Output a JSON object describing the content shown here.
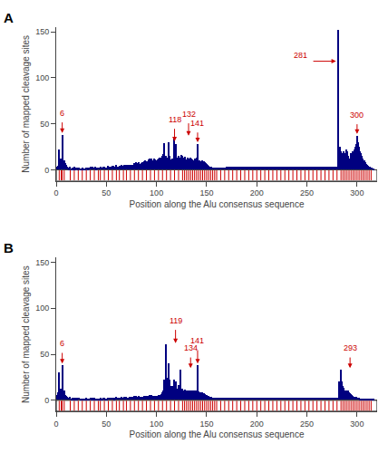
{
  "chart_data": [
    {
      "type": "bar",
      "title": "A",
      "xlabel": "Position along the Alu consensus sequence",
      "ylabel": "Number of mapped cleavage sites",
      "color": "#000080",
      "xlim": [
        0,
        320
      ],
      "xticks": [
        0,
        50,
        100,
        150,
        200,
        250,
        300
      ],
      "ylim": [
        -12,
        155
      ],
      "yticks": [
        0,
        50,
        100,
        150
      ],
      "grid": false,
      "values": [
        3,
        4,
        22,
        8,
        12,
        38,
        5,
        10,
        7,
        5,
        3,
        2,
        1,
        3,
        1,
        2,
        1,
        3,
        1,
        2,
        2,
        1,
        2,
        1,
        1,
        2,
        1,
        1,
        1,
        2,
        2,
        1,
        2,
        3,
        2,
        3,
        2,
        2,
        3,
        1,
        2,
        2,
        2,
        3,
        2,
        2,
        3,
        3,
        2,
        2,
        2,
        4,
        3,
        3,
        3,
        4,
        4,
        2,
        3,
        5,
        3,
        3,
        4,
        4,
        5,
        3,
        4,
        5,
        4,
        5,
        5,
        5,
        5,
        5,
        5,
        5,
        5,
        7,
        6,
        8,
        7,
        8,
        6,
        6,
        7,
        8,
        7,
        9,
        10,
        9,
        9,
        11,
        12,
        11,
        12,
        10,
        10,
        12,
        11,
        10,
        11,
        12,
        13,
        11,
        13,
        15,
        17,
        29,
        15,
        13,
        10,
        30,
        15,
        10,
        11,
        12,
        12,
        35,
        28,
        13,
        12,
        15,
        12,
        13,
        16,
        15,
        13,
        14,
        11,
        10,
        13,
        12,
        11,
        13,
        12,
        11,
        10,
        12,
        11,
        13,
        28,
        9,
        10,
        8,
        9,
        10,
        9,
        8,
        7,
        6,
        5,
        4,
        3,
        3,
        3,
        2,
        2,
        2,
        2,
        2,
        2,
        2,
        2,
        2,
        2,
        2,
        2,
        2,
        2,
        3,
        3,
        3,
        3,
        3,
        3,
        3,
        3,
        3,
        3,
        3,
        3,
        3,
        3,
        3,
        3,
        3,
        3,
        3,
        3,
        3,
        3,
        3,
        3,
        3,
        3,
        3,
        3,
        3,
        3,
        3,
        3,
        3,
        3,
        3,
        3,
        3,
        3,
        3,
        3,
        3,
        3,
        3,
        3,
        3,
        3,
        3,
        3,
        3,
        3,
        3,
        3,
        3,
        3,
        3,
        3,
        3,
        3,
        3,
        3,
        3,
        3,
        3,
        3,
        3,
        3,
        3,
        3,
        3,
        3,
        3,
        3,
        3,
        3,
        3,
        3,
        3,
        3,
        3,
        3,
        3,
        3,
        3,
        3,
        3,
        3,
        3,
        3,
        3,
        3,
        3,
        3,
        3,
        3,
        3,
        3,
        3,
        3,
        3,
        3,
        3,
        3,
        3,
        3,
        3,
        3,
        3,
        3,
        3,
        3,
        3,
        152,
        20,
        25,
        20,
        15,
        18,
        20,
        18,
        22,
        20,
        15,
        12,
        10,
        18,
        15,
        20,
        22,
        25,
        28,
        37,
        30,
        25,
        20,
        18,
        15,
        12,
        10,
        8,
        6,
        5,
        4,
        3,
        3,
        2,
        2,
        1
      ],
      "strip": {
        "color": "#cc0000",
        "x": [
          3,
          5,
          6,
          8,
          14,
          18,
          22,
          26,
          30,
          34,
          38,
          42,
          44,
          48,
          52,
          56,
          60,
          63,
          67,
          70,
          74,
          78,
          82,
          86,
          90,
          94,
          98,
          102,
          106,
          110,
          114,
          118,
          122,
          126,
          128,
          130,
          132,
          134,
          136,
          138,
          140,
          142,
          144,
          146,
          148,
          150,
          152,
          154,
          156,
          158,
          160,
          164,
          168,
          172,
          176,
          180,
          184,
          188,
          192,
          196,
          200,
          204,
          208,
          212,
          216,
          220,
          224,
          228,
          232,
          236,
          240,
          244,
          248,
          252,
          256,
          260,
          264,
          268,
          272,
          276,
          280,
          284,
          286,
          288,
          290,
          292,
          294,
          296,
          298,
          300,
          302,
          304,
          306,
          308,
          310,
          312,
          314
        ]
      },
      "annotations": [
        {
          "text": "6",
          "color": "#cc0000",
          "x": 6,
          "y": 55,
          "arrow_start": [
            6,
            53
          ],
          "arrow_end": [
            6,
            40
          ]
        },
        {
          "text": "118",
          "color": "#cc0000",
          "x": 118,
          "y": 48,
          "arrow_start": [
            118,
            46
          ],
          "arrow_end": [
            118,
            31
          ]
        },
        {
          "text": "132",
          "color": "#cc0000",
          "x": 132,
          "y": 54,
          "arrow_start": [
            132,
            52
          ],
          "arrow_end": [
            132,
            37
          ]
        },
        {
          "text": "141",
          "color": "#cc0000",
          "x": 141,
          "y": 44,
          "arrow_start": [
            141,
            42
          ],
          "arrow_end": [
            141,
            30
          ]
        },
        {
          "text": "281",
          "color": "#cc0000",
          "x": 244,
          "y": 118,
          "arrow_start": [
            255,
            118
          ],
          "arrow_end": [
            279,
            118
          ]
        },
        {
          "text": "300",
          "color": "#cc0000",
          "x": 300,
          "y": 53,
          "arrow_start": [
            300,
            51
          ],
          "arrow_end": [
            300,
            39
          ]
        }
      ]
    },
    {
      "type": "bar",
      "title": "B",
      "xlabel": "Position along the Alu consensus sequence",
      "ylabel": "Number of mapped cleavage sites",
      "color": "#000080",
      "xlim": [
        0,
        320
      ],
      "xticks": [
        0,
        50,
        100,
        150,
        200,
        250,
        300
      ],
      "ylim": [
        -12,
        155
      ],
      "yticks": [
        0,
        50,
        100,
        150
      ],
      "grid": false,
      "values": [
        5,
        8,
        30,
        10,
        12,
        38,
        8,
        10,
        5,
        4,
        3,
        2,
        2,
        3,
        1,
        2,
        1,
        2,
        1,
        2,
        1,
        2,
        2,
        1,
        1,
        1,
        1,
        1,
        1,
        2,
        1,
        1,
        1,
        2,
        1,
        2,
        1,
        2,
        1,
        1,
        1,
        1,
        1,
        2,
        1,
        1,
        2,
        2,
        1,
        1,
        1,
        2,
        2,
        2,
        2,
        2,
        2,
        1,
        2,
        3,
        2,
        2,
        2,
        2,
        3,
        2,
        2,
        3,
        2,
        3,
        2,
        2,
        3,
        3,
        3,
        3,
        3,
        4,
        3,
        4,
        3,
        4,
        3,
        3,
        3,
        3,
        3,
        4,
        4,
        4,
        4,
        4,
        5,
        4,
        5,
        4,
        4,
        4,
        4,
        4,
        4,
        5,
        5,
        5,
        6,
        8,
        10,
        22,
        60,
        24,
        15,
        40,
        22,
        15,
        14,
        15,
        14,
        22,
        20,
        12,
        10,
        16,
        10,
        33,
        10,
        12,
        10,
        11,
        10,
        10,
        10,
        10,
        10,
        10,
        10,
        10,
        10,
        10,
        10,
        10,
        38,
        9,
        8,
        8,
        7,
        8,
        7,
        6,
        5,
        5,
        4,
        4,
        3,
        3,
        3,
        2,
        2,
        2,
        2,
        2,
        2,
        2,
        2,
        2,
        2,
        2,
        2,
        2,
        2,
        2,
        2,
        2,
        2,
        2,
        2,
        2,
        2,
        2,
        2,
        2,
        2,
        2,
        2,
        2,
        2,
        2,
        2,
        2,
        2,
        2,
        2,
        2,
        2,
        2,
        2,
        2,
        2,
        2,
        2,
        2,
        2,
        2,
        2,
        2,
        2,
        2,
        2,
        2,
        2,
        2,
        2,
        2,
        2,
        2,
        2,
        2,
        2,
        2,
        2,
        2,
        2,
        2,
        2,
        2,
        2,
        2,
        2,
        2,
        2,
        2,
        2,
        2,
        2,
        2,
        2,
        2,
        2,
        2,
        2,
        2,
        2,
        2,
        2,
        2,
        2,
        2,
        2,
        2,
        2,
        2,
        2,
        2,
        2,
        2,
        2,
        2,
        2,
        2,
        2,
        2,
        2,
        2,
        2,
        2,
        2,
        2,
        2,
        2,
        2,
        2,
        2,
        2,
        2,
        2,
        2,
        2,
        2,
        2,
        2,
        2,
        2,
        20,
        18,
        33,
        20,
        15,
        13,
        10,
        10,
        10,
        10,
        8,
        7,
        6,
        5,
        4,
        3,
        3,
        3,
        2,
        2,
        2,
        1,
        1,
        1,
        1,
        1,
        1,
        1,
        1,
        1,
        1,
        1,
        1,
        1,
        1
      ],
      "strip": {
        "color": "#cc0000",
        "x": [
          3,
          5,
          6,
          8,
          14,
          18,
          22,
          26,
          30,
          34,
          38,
          42,
          44,
          48,
          52,
          56,
          60,
          63,
          67,
          70,
          74,
          78,
          82,
          86,
          90,
          94,
          98,
          102,
          106,
          110,
          114,
          118,
          122,
          126,
          128,
          130,
          132,
          134,
          136,
          138,
          140,
          142,
          144,
          146,
          148,
          150,
          152,
          154,
          156,
          158,
          160,
          164,
          168,
          172,
          176,
          180,
          184,
          188,
          192,
          196,
          200,
          204,
          208,
          212,
          216,
          220,
          224,
          228,
          232,
          236,
          240,
          244,
          248,
          252,
          256,
          260,
          264,
          268,
          272,
          276,
          280,
          284,
          286,
          288,
          290,
          292,
          294,
          296,
          298,
          300,
          302,
          304,
          306,
          308,
          310,
          312,
          314
        ]
      },
      "annotations": [
        {
          "text": "6",
          "color": "#cc0000",
          "x": 6,
          "y": 55,
          "arrow_start": [
            6,
            53
          ],
          "arrow_end": [
            6,
            40
          ]
        },
        {
          "text": "119",
          "color": "#cc0000",
          "x": 119,
          "y": 80,
          "arrow_start": [
            119,
            78
          ],
          "arrow_end": [
            119,
            62
          ]
        },
        {
          "text": "134",
          "color": "#cc0000",
          "x": 134,
          "y": 50,
          "arrow_start": [
            134,
            48
          ],
          "arrow_end": [
            134,
            35
          ]
        },
        {
          "text": "141",
          "color": "#cc0000",
          "x": 141,
          "y": 58,
          "arrow_start": [
            141,
            56
          ],
          "arrow_end": [
            141,
            40
          ]
        },
        {
          "text": "293",
          "color": "#cc0000",
          "x": 293,
          "y": 50,
          "arrow_start": [
            293,
            48
          ],
          "arrow_end": [
            293,
            35
          ]
        }
      ]
    }
  ]
}
